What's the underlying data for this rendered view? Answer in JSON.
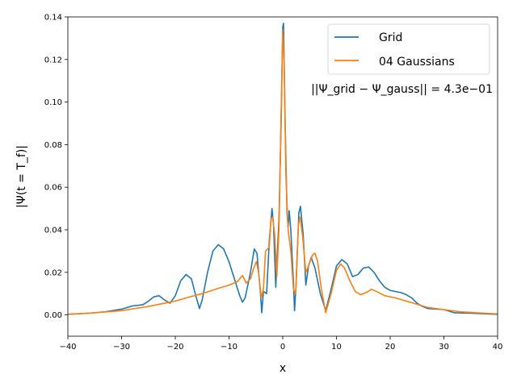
{
  "chart_data": {
    "type": "line",
    "title": "",
    "xlabel": "x",
    "ylabel": "|Ψ(t = T_f)|",
    "xlim": [
      -40,
      40
    ],
    "ylim": [
      -0.01,
      0.14
    ],
    "xticks": [
      -40,
      -30,
      -20,
      -10,
      0,
      10,
      20,
      30,
      40
    ],
    "yticks": [
      0.0,
      0.02,
      0.04,
      0.06,
      0.08,
      0.1,
      0.12,
      0.14
    ],
    "ytick_labels": [
      "0.00",
      "0.02",
      "0.04",
      "0.06",
      "0.08",
      "0.10",
      "0.12",
      "0.14"
    ],
    "xtick_labels": [
      "−40",
      "−30",
      "−20",
      "−10",
      "0",
      "10",
      "20",
      "30",
      "40"
    ],
    "grid": false,
    "legend_position": "top-right",
    "annotation": "||Ψ_grid − Ψ_gauss|| = 4.3e−01",
    "series": [
      {
        "name": "Grid",
        "color": "#1f77b4",
        "points": [
          [
            -40,
            0.0003
          ],
          [
            -36,
            0.0008
          ],
          [
            -33,
            0.0015
          ],
          [
            -30,
            0.0027
          ],
          [
            -28,
            0.0042
          ],
          [
            -26,
            0.0048
          ],
          [
            -25,
            0.0065
          ],
          [
            -24,
            0.0085
          ],
          [
            -23,
            0.009
          ],
          [
            -22,
            0.007
          ],
          [
            -21,
            0.0055
          ],
          [
            -20,
            0.009
          ],
          [
            -19,
            0.016
          ],
          [
            -18,
            0.019
          ],
          [
            -17,
            0.017
          ],
          [
            -16.3,
            0.01
          ],
          [
            -15.5,
            0.003
          ],
          [
            -15,
            0.007
          ],
          [
            -14,
            0.02
          ],
          [
            -13,
            0.03
          ],
          [
            -12,
            0.033
          ],
          [
            -11,
            0.031
          ],
          [
            -10,
            0.025
          ],
          [
            -9,
            0.017
          ],
          [
            -8,
            0.009
          ],
          [
            -7.5,
            0.006
          ],
          [
            -7,
            0.008
          ],
          [
            -6,
            0.02
          ],
          [
            -5.3,
            0.031
          ],
          [
            -4.8,
            0.029
          ],
          [
            -4.2,
            0.012
          ],
          [
            -3.9,
            0.001
          ],
          [
            -3.6,
            0.011
          ],
          [
            -3.0,
            0.01
          ],
          [
            -2.5,
            0.035
          ],
          [
            -2.0,
            0.05
          ],
          [
            -1.7,
            0.042
          ],
          [
            -1.3,
            0.013
          ],
          [
            -0.7,
            0.045
          ],
          [
            -0.3,
            0.09
          ],
          [
            0,
            0.135
          ],
          [
            0.15,
            0.137
          ],
          [
            0.45,
            0.09
          ],
          [
            0.8,
            0.048
          ],
          [
            1.0,
            0.041
          ],
          [
            1.2,
            0.049
          ],
          [
            1.5,
            0.04
          ],
          [
            2.0,
            0.015
          ],
          [
            2.2,
            0.002
          ],
          [
            2.5,
            0.015
          ],
          [
            3.0,
            0.048
          ],
          [
            3.3,
            0.051
          ],
          [
            3.8,
            0.038
          ],
          [
            4.3,
            0.014
          ],
          [
            4.8,
            0.023
          ],
          [
            5.3,
            0.027
          ],
          [
            6,
            0.022
          ],
          [
            7,
            0.01
          ],
          [
            8,
            0.002
          ],
          [
            9,
            0.012
          ],
          [
            10,
            0.023
          ],
          [
            11,
            0.026
          ],
          [
            12,
            0.024
          ],
          [
            13,
            0.018
          ],
          [
            14,
            0.019
          ],
          [
            15,
            0.022
          ],
          [
            16,
            0.0225
          ],
          [
            17,
            0.02
          ],
          [
            18,
            0.016
          ],
          [
            19,
            0.013
          ],
          [
            20,
            0.0115
          ],
          [
            22,
            0.0105
          ],
          [
            23,
            0.0095
          ],
          [
            24,
            0.008
          ],
          [
            25,
            0.0055
          ],
          [
            26,
            0.004
          ],
          [
            27,
            0.003
          ],
          [
            30,
            0.0025
          ],
          [
            32,
            0.001
          ],
          [
            35,
            0.0008
          ],
          [
            38,
            0.0005
          ],
          [
            40,
            0.0003
          ]
        ]
      },
      {
        "name": "04 Gaussians",
        "color": "#ff7f0e",
        "points": [
          [
            -40,
            0.0003
          ],
          [
            -35,
            0.001
          ],
          [
            -30,
            0.002
          ],
          [
            -25,
            0.004
          ],
          [
            -22,
            0.0055
          ],
          [
            -20,
            0.0065
          ],
          [
            -18,
            0.008
          ],
          [
            -15,
            0.01
          ],
          [
            -12,
            0.0125
          ],
          [
            -10,
            0.014
          ],
          [
            -8.5,
            0.0155
          ],
          [
            -7.5,
            0.0185
          ],
          [
            -6.8,
            0.015
          ],
          [
            -6,
            0.017
          ],
          [
            -5.4,
            0.022
          ],
          [
            -4.9,
            0.025
          ],
          [
            -4.5,
            0.02
          ],
          [
            -4.0,
            0.008
          ],
          [
            -3.6,
            0.012
          ],
          [
            -3.2,
            0.03
          ],
          [
            -2.8,
            0.031
          ],
          [
            -2.5,
            0.032
          ],
          [
            -2.2,
            0.045
          ],
          [
            -1.9,
            0.046
          ],
          [
            -1.5,
            0.038
          ],
          [
            -1.1,
            0.018
          ],
          [
            -0.7,
            0.04
          ],
          [
            -0.3,
            0.095
          ],
          [
            0,
            0.134
          ],
          [
            0.25,
            0.12
          ],
          [
            0.6,
            0.065
          ],
          [
            1.0,
            0.04
          ],
          [
            1.5,
            0.03
          ],
          [
            2.0,
            0.012
          ],
          [
            2.4,
            0.01
          ],
          [
            2.9,
            0.042
          ],
          [
            3.2,
            0.046
          ],
          [
            3.7,
            0.037
          ],
          [
            4.3,
            0.02
          ],
          [
            4.8,
            0.023
          ],
          [
            5.5,
            0.028
          ],
          [
            6.0,
            0.029
          ],
          [
            6.5,
            0.025
          ],
          [
            7.2,
            0.012
          ],
          [
            8,
            0.001
          ],
          [
            9,
            0.01
          ],
          [
            10,
            0.021
          ],
          [
            10.8,
            0.024
          ],
          [
            11.5,
            0.022
          ],
          [
            12.5,
            0.016
          ],
          [
            13.5,
            0.011
          ],
          [
            14.5,
            0.0095
          ],
          [
            15.5,
            0.0105
          ],
          [
            16.5,
            0.012
          ],
          [
            17.5,
            0.011
          ],
          [
            19,
            0.009
          ],
          [
            21,
            0.008
          ],
          [
            23,
            0.0065
          ],
          [
            25,
            0.005
          ],
          [
            27,
            0.0035
          ],
          [
            30,
            0.0025
          ],
          [
            33,
            0.0015
          ],
          [
            36,
            0.001
          ],
          [
            40,
            0.0005
          ]
        ]
      }
    ]
  }
}
